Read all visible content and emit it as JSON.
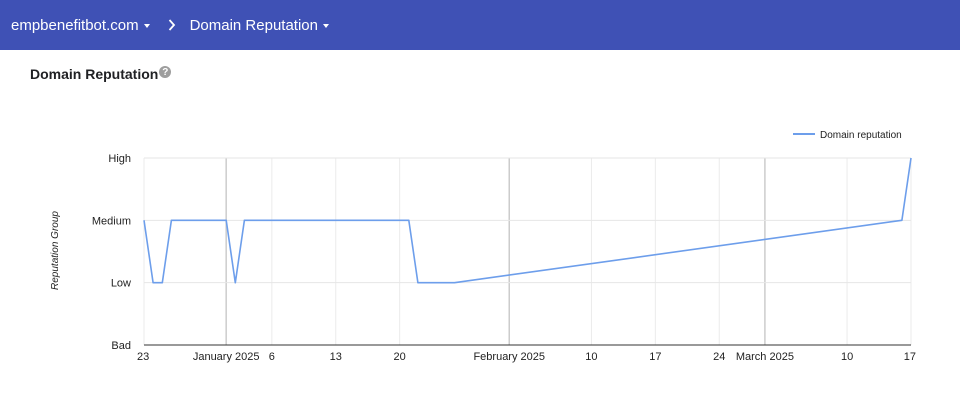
{
  "header": {
    "domain": "empbenefitbot.com",
    "page": "Domain Reputation",
    "colors": {
      "bar": "#3f51b5",
      "text": "#ffffff"
    }
  },
  "card": {
    "title": "Domain Reputation",
    "help_icon": "help-circle-icon",
    "help_glyph": "?"
  },
  "chart_data": {
    "type": "line",
    "title": "",
    "xlabel": "",
    "ylabel": "Reputation Group",
    "y_categories": [
      "Bad",
      "Low",
      "Medium",
      "High"
    ],
    "x_range": [
      "2024-12-23",
      "2025-03-17"
    ],
    "x_tick_labels": [
      {
        "date": "2024-12-23",
        "label": "23"
      },
      {
        "date": "2025-01-01",
        "label": "January 2025",
        "major": true
      },
      {
        "date": "2025-01-06",
        "label": "6"
      },
      {
        "date": "2025-01-13",
        "label": "13"
      },
      {
        "date": "2025-01-20",
        "label": "20"
      },
      {
        "date": "2025-02-01",
        "label": "February 2025",
        "major": true
      },
      {
        "date": "2025-02-10",
        "label": "10"
      },
      {
        "date": "2025-02-17",
        "label": "17"
      },
      {
        "date": "2025-02-24",
        "label": "24"
      },
      {
        "date": "2025-03-01",
        "label": "March 2025",
        "major": true
      },
      {
        "date": "2025-03-10",
        "label": "10"
      },
      {
        "date": "2025-03-17",
        "label": "17"
      }
    ],
    "series": [
      {
        "name": "Domain reputation",
        "color": "#6d9eeb",
        "points": [
          {
            "x": "2024-12-23",
            "y": "Medium"
          },
          {
            "x": "2024-12-24",
            "y": "Low"
          },
          {
            "x": "2024-12-25",
            "y": "Low"
          },
          {
            "x": "2024-12-26",
            "y": "Medium"
          },
          {
            "x": "2025-01-01",
            "y": "Medium"
          },
          {
            "x": "2025-01-02",
            "y": "Low"
          },
          {
            "x": "2025-01-03",
            "y": "Medium"
          },
          {
            "x": "2025-01-21",
            "y": "Medium"
          },
          {
            "x": "2025-01-22",
            "y": "Low"
          },
          {
            "x": "2025-01-26",
            "y": "Low"
          },
          {
            "x": "2025-03-16",
            "y": "Medium"
          },
          {
            "x": "2025-03-17",
            "y": "High"
          }
        ]
      }
    ],
    "legend": "top-right",
    "grid": true
  }
}
